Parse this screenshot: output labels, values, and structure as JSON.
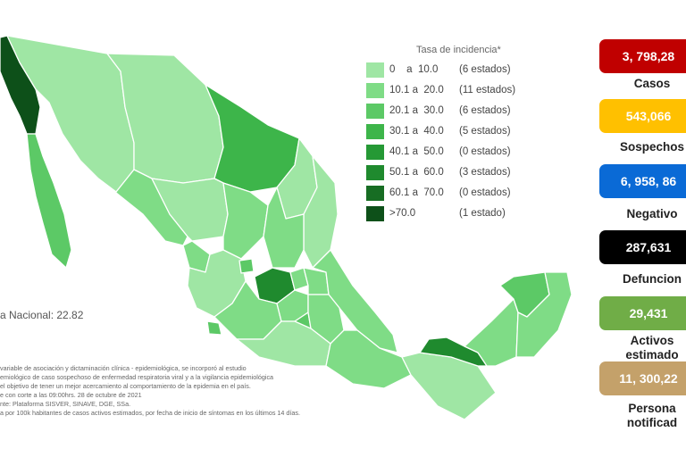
{
  "colors": {
    "bin1": "#9fe6a4",
    "bin2": "#7fdc86",
    "bin3": "#5cc966",
    "bin4": "#3db54a",
    "bin5": "#259935",
    "bin6": "#1f8a2e",
    "bin7": "#176d23",
    "bin8": "#0d5019",
    "border": "#ffffff"
  },
  "legend": {
    "title": "Tasa de incidencia*",
    "items": [
      {
        "range": "0    a  10.0",
        "count": "(6 estados)",
        "color": "#9fe6a4"
      },
      {
        "range": "10.1 a  20.0",
        "count": "(11 estados)",
        "color": "#7fdc86"
      },
      {
        "range": "20.1 a  30.0",
        "count": "(6 estados)",
        "color": "#5cc966"
      },
      {
        "range": "30.1 a  40.0",
        "count": "(5 estados)",
        "color": "#3db54a"
      },
      {
        "range": "40.1 a  50.0",
        "count": "(0 estados)",
        "color": "#259935"
      },
      {
        "range": "50.1 a  60.0",
        "count": "(3 estados)",
        "color": "#1f8a2e"
      },
      {
        "range": "60.1 a  70.0",
        "count": "(0 estados)",
        "color": "#176d23"
      },
      {
        "range": ">70.0",
        "count": "(1 estado)",
        "color": "#0d5019"
      }
    ]
  },
  "national_rate": "a Nacional: 22.82",
  "notes": [
    "variable de asociación y dictaminación clínica - epidemiológica, se incorporó al estudio",
    "emiológico de caso sospechoso de enfermedad respiratoria viral y a la vigilancia epidemiológica",
    "el objetivo de tener un mejor acercamiento al comportamiento de la epidemia en el país.",
    "e con corte a las 09:00hrs. 28 de octubre de 2021",
    "nte: Plataforma SISVER, SINAVE, DGE, SSa.",
    "a por 100k habitantes de casos activos estimados, por fecha de inicio de síntomas en los últimos 14 días."
  ],
  "stats": [
    {
      "value": "3, 798,28",
      "label": "Casos",
      "bg": "#c00000",
      "fg": "#ffffff"
    },
    {
      "value": "543,066",
      "label": "Sospechos",
      "bg": "#ffc000",
      "fg": "#ffffff"
    },
    {
      "value": "6, 958, 86",
      "label": "Negativo",
      "bg": "#0a6ad6",
      "fg": "#ffffff"
    },
    {
      "value": "287,631",
      "label": "Defuncion",
      "bg": "#000000",
      "fg": "#ffffff"
    },
    {
      "value": "29,431",
      "label": "Activos estimado",
      "bg": "#70ad47",
      "fg": "#ffffff"
    },
    {
      "value": "11, 300,22",
      "label": "Persona notificad",
      "bg": "#c4a16a",
      "fg": "#ffffff"
    }
  ]
}
